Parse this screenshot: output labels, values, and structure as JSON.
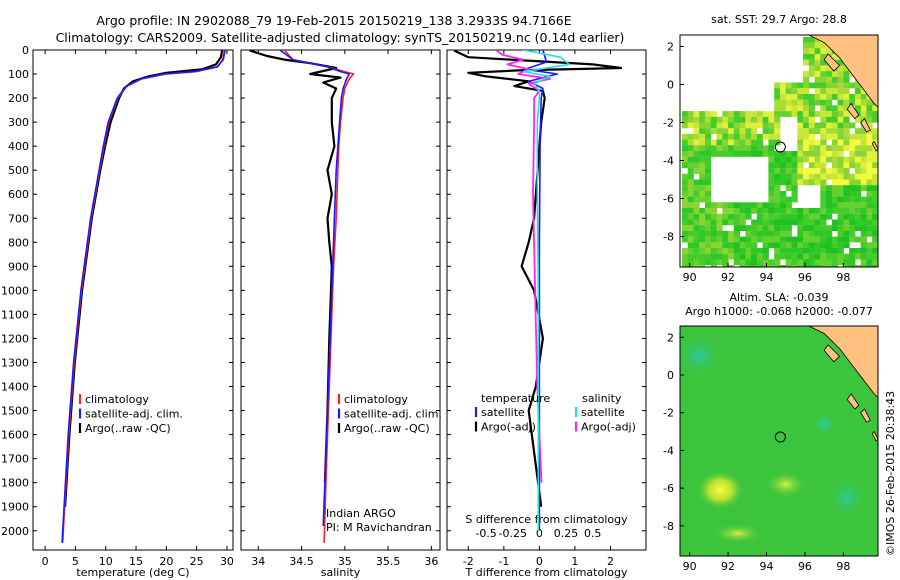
{
  "header": {
    "line1": "Argo profile: IN 2902088_79 19-Feb-2015 20150219_138 3.2933S 94.7166E",
    "line2": "Climatology: CARS2009. Satellite-adjusted climatology: synTS_20150219.nc (0.14d earlier)"
  },
  "credit": "©IMOS 26-Feb-2015 20:38:43",
  "colors": {
    "climatology": "#ff2020",
    "satellite": "#1a1aff",
    "argo": "#000000",
    "sal_satellite": "#22e0e8",
    "sal_argo": "#ff22ff",
    "land": "#ffc080"
  },
  "chart_data": [
    {
      "type": "line",
      "name": "temperature-profile",
      "xlabel": "temperature (deg C)",
      "xlim": [
        -2,
        31
      ],
      "ylim": [
        2080,
        0
      ],
      "xticks": [
        0,
        5,
        10,
        15,
        20,
        25,
        30
      ],
      "yticks": [
        0,
        100,
        200,
        300,
        400,
        500,
        600,
        700,
        800,
        900,
        1000,
        1100,
        1200,
        1300,
        1400,
        1500,
        1600,
        1700,
        1800,
        1900,
        2000
      ],
      "legend": [
        "climatology",
        "satellite-adj. clim.",
        "Argo(..raw -QC)"
      ],
      "series": [
        {
          "name": "climatology",
          "depth": [
            0,
            40,
            70,
            90,
            100,
            120,
            150,
            200,
            300,
            400,
            500,
            700,
            1000,
            1300,
            1600,
            2000,
            2050
          ],
          "values": [
            29.6,
            29.3,
            28.5,
            25,
            20,
            16,
            13.5,
            12,
            10.5,
            9.7,
            9,
            7.6,
            6,
            4.8,
            3.9,
            3,
            2.9
          ]
        },
        {
          "name": "satellite-adj. clim.",
          "depth": [
            0,
            40,
            70,
            90,
            100,
            120,
            150,
            200,
            300,
            400,
            500,
            700,
            1000,
            1300,
            1600,
            2000,
            2050
          ],
          "values": [
            29.7,
            29.4,
            28.4,
            24.5,
            19.5,
            15.8,
            13.4,
            11.9,
            10.4,
            9.6,
            8.9,
            7.5,
            5.9,
            4.7,
            3.8,
            2.9,
            2.8
          ]
        },
        {
          "name": "Argo(..raw -QC)",
          "depth": [
            2,
            30,
            60,
            80,
            95,
            110,
            130,
            160,
            200,
            300,
            400,
            500,
            700,
            1000,
            1300,
            1600,
            1900
          ],
          "values": [
            29.2,
            29.0,
            28.2,
            26,
            20,
            17,
            14.5,
            13,
            12.2,
            10.8,
            9.9,
            9.1,
            7.7,
            6.1,
            4.9,
            4.0,
            3.3
          ]
        }
      ]
    },
    {
      "type": "line",
      "name": "salinity-profile",
      "xlabel": "salinity",
      "xlim": [
        33.8,
        36.1
      ],
      "ylim": [
        2080,
        0
      ],
      "xticks": [
        "34",
        "34.5",
        "35",
        "35.5",
        "36"
      ],
      "legend": [
        "climatology",
        "satellite-adj. clim.",
        "Argo(..raw -QC)"
      ],
      "annotation": [
        "Indian ARGO",
        "PI: M Ravichandran"
      ],
      "series": [
        {
          "name": "climatology",
          "depth": [
            0,
            40,
            70,
            90,
            100,
            120,
            160,
            200,
            300,
            400,
            500,
            700,
            900,
            1100,
            1400,
            1700,
            2050
          ],
          "values": [
            34.3,
            34.4,
            34.8,
            35.0,
            35.1,
            35.05,
            35.0,
            34.98,
            34.95,
            34.93,
            34.92,
            34.9,
            34.87,
            34.85,
            34.82,
            34.79,
            34.76
          ]
        },
        {
          "name": "satellite-adj. clim.",
          "depth": [
            0,
            40,
            70,
            90,
            100,
            120,
            160,
            200,
            300,
            400,
            500,
            700,
            900,
            1100,
            1400,
            1700,
            1980
          ],
          "values": [
            34.25,
            34.4,
            34.8,
            34.95,
            35.05,
            35.02,
            34.98,
            34.96,
            34.94,
            34.92,
            34.9,
            34.88,
            34.86,
            34.84,
            34.81,
            34.78,
            34.75
          ]
        },
        {
          "name": "Argo(..raw -QC)",
          "depth": [
            2,
            25,
            40,
            55,
            75,
            100,
            115,
            135,
            160,
            200,
            300,
            400,
            500,
            600,
            700,
            800,
            900,
            1000,
            1200,
            1500,
            1800
          ],
          "values": [
            33.9,
            34.1,
            34.3,
            34.6,
            34.9,
            34.6,
            34.95,
            34.75,
            34.9,
            34.85,
            34.85,
            34.88,
            34.8,
            34.85,
            34.8,
            34.82,
            34.85,
            34.84,
            34.82,
            34.8,
            34.77
          ]
        }
      ]
    },
    {
      "type": "line",
      "name": "difference-profile",
      "xlabel": "T difference from climatology",
      "xlabel_top": "S difference from climatology",
      "xlim": [
        -2.6,
        3.0
      ],
      "ylim": [
        2080,
        0
      ],
      "xticks": [
        "-2",
        "-1",
        "0",
        "1",
        "2"
      ],
      "xticks_top": [
        "-0.5",
        "-0.25",
        "0",
        "0.25",
        "0.5"
      ],
      "legend_temperature": [
        "temperature",
        "satellite",
        "Argo(-adj)"
      ],
      "legend_salinity": [
        "salinity",
        "satellite",
        "Argo(-adj)"
      ],
      "series": [
        {
          "name": "T satellite",
          "depth": [
            0,
            50,
            80,
            100,
            130,
            160,
            200,
            400,
            800,
            1200,
            2000
          ],
          "values": [
            0.1,
            0.2,
            -0.4,
            0.5,
            -0.3,
            0.1,
            0.05,
            0.02,
            0,
            0,
            0
          ]
        },
        {
          "name": "T Argo(-adj)",
          "depth": [
            2,
            30,
            60,
            75,
            85,
            95,
            110,
            130,
            150,
            170,
            200,
            300,
            500,
            700,
            800,
            900,
            1000,
            1200,
            1400,
            1500,
            1900
          ],
          "values": [
            -2.4,
            -2.0,
            1.5,
            2.3,
            -0.6,
            -2.0,
            -1.5,
            -0.3,
            -0.7,
            0.1,
            0.15,
            0.05,
            -0.05,
            -0.15,
            -0.3,
            -0.5,
            -0.15,
            0.1,
            -0.1,
            -0.3,
            0.05
          ]
        },
        {
          "name": "S satellite",
          "depth": [
            0,
            30,
            60,
            90,
            110,
            140,
            170,
            200,
            300,
            600,
            1000,
            1400,
            2000
          ],
          "values": [
            -0.15,
            0.2,
            0.28,
            -0.15,
            0.1,
            -0.05,
            0.0,
            0.0,
            -0.02,
            -0.02,
            -0.01,
            -0.01,
            -0.01
          ]
        },
        {
          "name": "S Argo(-adj)",
          "depth": [
            2,
            20,
            40,
            60,
            80,
            100,
            120,
            140,
            170,
            200,
            300,
            600,
            1000,
            1400,
            1800
          ],
          "values": [
            -0.4,
            -0.35,
            -0.15,
            -0.3,
            -0.1,
            -0.2,
            0.1,
            -0.1,
            0.0,
            -0.05,
            -0.05,
            -0.06,
            -0.04,
            -0.02,
            0.02
          ]
        }
      ]
    },
    {
      "type": "heatmap",
      "name": "sst-map",
      "title": "sat. SST: 29.7 Argo: 28.8",
      "xlim": [
        89.5,
        99.8
      ],
      "ylim": [
        -9.6,
        2.6
      ],
      "xticks": [
        "90",
        "92",
        "94",
        "96",
        "98"
      ],
      "yticks": [
        "2",
        "0",
        "-2",
        "-4",
        "-6",
        "-8"
      ],
      "profile_location": [
        94.72,
        -3.29
      ]
    },
    {
      "type": "heatmap",
      "name": "sla-map",
      "title": "Altim. SLA: -0.039",
      "subtitle": "Argo h1000: -0.068 h2000: -0.077",
      "xlim": [
        89.5,
        99.8
      ],
      "ylim": [
        -9.6,
        2.6
      ],
      "xticks": [
        "90",
        "92",
        "94",
        "96",
        "98"
      ],
      "yticks": [
        "2",
        "0",
        "-2",
        "-4",
        "-6",
        "-8"
      ],
      "profile_location": [
        94.72,
        -3.29
      ]
    }
  ]
}
